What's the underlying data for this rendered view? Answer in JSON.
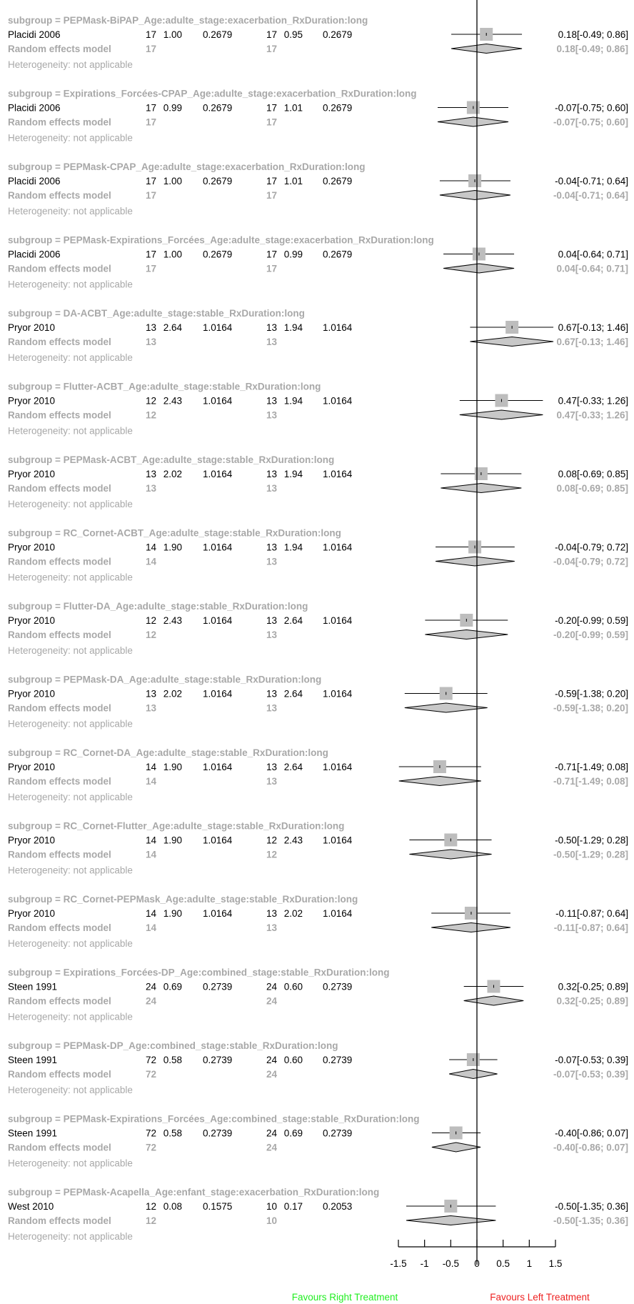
{
  "chart_data": {
    "type": "forest",
    "xlim": [
      -1.5,
      1.5
    ],
    "xticks": [
      "-1.5",
      "-1",
      "-0.5",
      "0",
      "0.5",
      "1",
      "1.5"
    ],
    "xtick_values": [
      -1.5,
      -1,
      -0.5,
      0,
      0.5,
      1,
      1.5
    ],
    "label_left": "Favours Right Treatment",
    "label_right": "Favours Left Treatment",
    "colors": {
      "text": "#000000",
      "muted": "#a8a8a8",
      "square": "#bdbdbd",
      "diamond": "#c8c8c8",
      "label_left": "#22ee22",
      "label_right": "#ee2222"
    },
    "re_label": "Random effects model",
    "het_label": "Heterogeneity: not applicable",
    "subgroups": [
      {
        "title": "subgroup = PEPMask-BiPAP_Age:adulte_stage:exacerbation_RxDuration:long",
        "study": "Placidi 2006",
        "n1": "17",
        "m1": "1.00",
        "sd1": "0.2679",
        "n2": "17",
        "m2": "0.95",
        "sd2": "0.2679",
        "est": 0.18,
        "lo": -0.49,
        "hi": 0.86,
        "ci_text": "0.18[-0.49; 0.86]"
      },
      {
        "title": "subgroup = Expirations_Forcées-CPAP_Age:adulte_stage:exacerbation_RxDuration:long",
        "study": "Placidi 2006",
        "n1": "17",
        "m1": "0.99",
        "sd1": "0.2679",
        "n2": "17",
        "m2": "1.01",
        "sd2": "0.2679",
        "est": -0.07,
        "lo": -0.75,
        "hi": 0.6,
        "ci_text": "-0.07[-0.75; 0.60]"
      },
      {
        "title": "subgroup = PEPMask-CPAP_Age:adulte_stage:exacerbation_RxDuration:long",
        "study": "Placidi 2006",
        "n1": "17",
        "m1": "1.00",
        "sd1": "0.2679",
        "n2": "17",
        "m2": "1.01",
        "sd2": "0.2679",
        "est": -0.04,
        "lo": -0.71,
        "hi": 0.64,
        "ci_text": "-0.04[-0.71; 0.64]"
      },
      {
        "title": "subgroup = PEPMask-Expirations_Forcées_Age:adulte_stage:exacerbation_RxDuration:long",
        "study": "Placidi 2006",
        "n1": "17",
        "m1": "1.00",
        "sd1": "0.2679",
        "n2": "17",
        "m2": "0.99",
        "sd2": "0.2679",
        "est": 0.04,
        "lo": -0.64,
        "hi": 0.71,
        "ci_text": "0.04[-0.64; 0.71]"
      },
      {
        "title": "subgroup = DA-ACBT_Age:adulte_stage:stable_RxDuration:long",
        "study": "Pryor 2010",
        "n1": "13",
        "m1": "2.64",
        "sd1": "1.0164",
        "n2": "13",
        "m2": "1.94",
        "sd2": "1.0164",
        "est": 0.67,
        "lo": -0.13,
        "hi": 1.46,
        "ci_text": "0.67[-0.13; 1.46]"
      },
      {
        "title": "subgroup = Flutter-ACBT_Age:adulte_stage:stable_RxDuration:long",
        "study": "Pryor 2010",
        "n1": "12",
        "m1": "2.43",
        "sd1": "1.0164",
        "n2": "13",
        "m2": "1.94",
        "sd2": "1.0164",
        "est": 0.47,
        "lo": -0.33,
        "hi": 1.26,
        "ci_text": "0.47[-0.33; 1.26]"
      },
      {
        "title": "subgroup = PEPMask-ACBT_Age:adulte_stage:stable_RxDuration:long",
        "study": "Pryor 2010",
        "n1": "13",
        "m1": "2.02",
        "sd1": "1.0164",
        "n2": "13",
        "m2": "1.94",
        "sd2": "1.0164",
        "est": 0.08,
        "lo": -0.69,
        "hi": 0.85,
        "ci_text": "0.08[-0.69; 0.85]"
      },
      {
        "title": "subgroup = RC_Cornet-ACBT_Age:adulte_stage:stable_RxDuration:long",
        "study": "Pryor 2010",
        "n1": "14",
        "m1": "1.90",
        "sd1": "1.0164",
        "n2": "13",
        "m2": "1.94",
        "sd2": "1.0164",
        "est": -0.04,
        "lo": -0.79,
        "hi": 0.72,
        "ci_text": "-0.04[-0.79; 0.72]"
      },
      {
        "title": "subgroup = Flutter-DA_Age:adulte_stage:stable_RxDuration:long",
        "study": "Pryor 2010",
        "n1": "12",
        "m1": "2.43",
        "sd1": "1.0164",
        "n2": "13",
        "m2": "2.64",
        "sd2": "1.0164",
        "est": -0.2,
        "lo": -0.99,
        "hi": 0.59,
        "ci_text": "-0.20[-0.99; 0.59]"
      },
      {
        "title": "subgroup = PEPMask-DA_Age:adulte_stage:stable_RxDuration:long",
        "study": "Pryor 2010",
        "n1": "13",
        "m1": "2.02",
        "sd1": "1.0164",
        "n2": "13",
        "m2": "2.64",
        "sd2": "1.0164",
        "est": -0.59,
        "lo": -1.38,
        "hi": 0.2,
        "ci_text": "-0.59[-1.38; 0.20]"
      },
      {
        "title": "subgroup = RC_Cornet-DA_Age:adulte_stage:stable_RxDuration:long",
        "study": "Pryor 2010",
        "n1": "14",
        "m1": "1.90",
        "sd1": "1.0164",
        "n2": "13",
        "m2": "2.64",
        "sd2": "1.0164",
        "est": -0.71,
        "lo": -1.49,
        "hi": 0.08,
        "ci_text": "-0.71[-1.49; 0.08]"
      },
      {
        "title": "subgroup = RC_Cornet-Flutter_Age:adulte_stage:stable_RxDuration:long",
        "study": "Pryor 2010",
        "n1": "14",
        "m1": "1.90",
        "sd1": "1.0164",
        "n2": "12",
        "m2": "2.43",
        "sd2": "1.0164",
        "est": -0.5,
        "lo": -1.29,
        "hi": 0.28,
        "ci_text": "-0.50[-1.29; 0.28]"
      },
      {
        "title": "subgroup = RC_Cornet-PEPMask_Age:adulte_stage:stable_RxDuration:long",
        "study": "Pryor 2010",
        "n1": "14",
        "m1": "1.90",
        "sd1": "1.0164",
        "n2": "13",
        "m2": "2.02",
        "sd2": "1.0164",
        "est": -0.11,
        "lo": -0.87,
        "hi": 0.64,
        "ci_text": "-0.11[-0.87; 0.64]"
      },
      {
        "title": "subgroup = Expirations_Forcées-DP_Age:combined_stage:stable_RxDuration:long",
        "study": "Steen 1991",
        "n1": "24",
        "m1": "0.69",
        "sd1": "0.2739",
        "n2": "24",
        "m2": "0.60",
        "sd2": "0.2739",
        "est": 0.32,
        "lo": -0.25,
        "hi": 0.89,
        "ci_text": "0.32[-0.25; 0.89]"
      },
      {
        "title": "subgroup = PEPMask-DP_Age:combined_stage:stable_RxDuration:long",
        "study": "Steen 1991",
        "n1": "72",
        "m1": "0.58",
        "sd1": "0.2739",
        "n2": "24",
        "m2": "0.60",
        "sd2": "0.2739",
        "est": -0.07,
        "lo": -0.53,
        "hi": 0.39,
        "ci_text": "-0.07[-0.53; 0.39]"
      },
      {
        "title": "subgroup = PEPMask-Expirations_Forcées_Age:combined_stage:stable_RxDuration:long",
        "study": "Steen 1991",
        "n1": "72",
        "m1": "0.58",
        "sd1": "0.2739",
        "n2": "24",
        "m2": "0.69",
        "sd2": "0.2739",
        "est": -0.4,
        "lo": -0.86,
        "hi": 0.07,
        "ci_text": "-0.40[-0.86; 0.07]"
      },
      {
        "title": "subgroup = PEPMask-Acapella_Age:enfant_stage:exacerbation_RxDuration:long",
        "study": "West 2010",
        "n1": "12",
        "m1": "0.08",
        "sd1": "0.1575",
        "n2": "10",
        "m2": "0.17",
        "sd2": "0.2053",
        "est": -0.5,
        "lo": -1.35,
        "hi": 0.36,
        "ci_text": "-0.50[-1.35; 0.36]"
      }
    ]
  }
}
